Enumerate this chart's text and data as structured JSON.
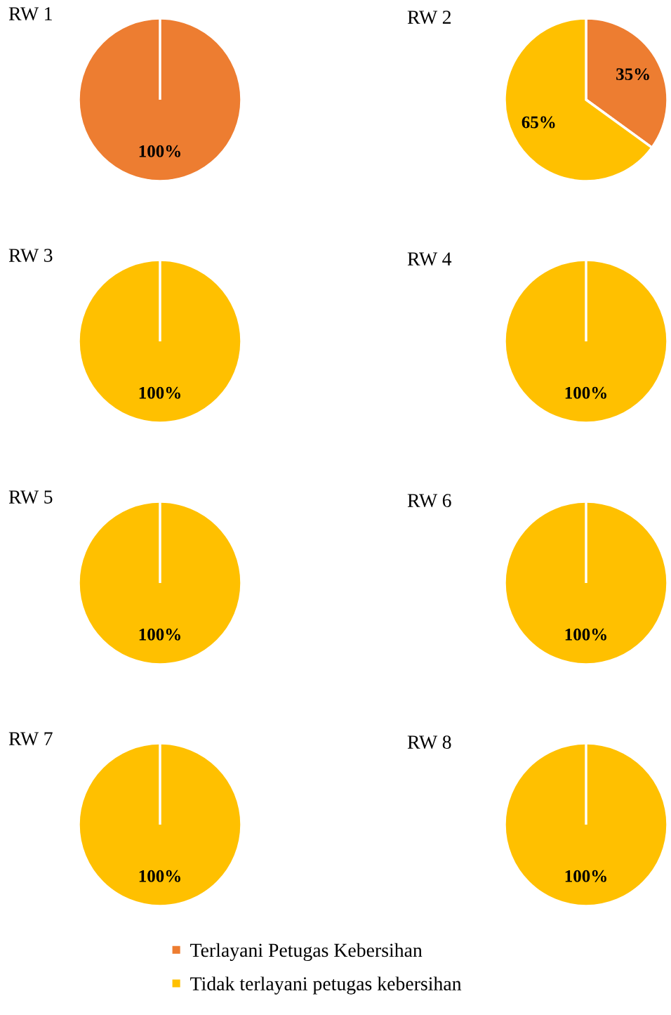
{
  "chart_data": [
    {
      "type": "pie",
      "title": "RW 1",
      "categories": [
        null,
        null
      ],
      "values": [
        100,
        0
      ],
      "colors": [
        "#ed7d31",
        "#ffc000"
      ],
      "value_labels": [
        "100%",
        null
      ]
    },
    {
      "type": "pie",
      "title": "RW 2",
      "categories": [
        null,
        null
      ],
      "values": [
        35,
        65
      ],
      "colors": [
        "#ed7d31",
        "#ffc000"
      ],
      "value_labels": [
        "35%",
        "65%"
      ]
    },
    {
      "type": "pie",
      "title": "RW 3",
      "categories": [
        null,
        null
      ],
      "values": [
        0,
        100
      ],
      "colors": [
        "#ed7d31",
        "#ffc000"
      ],
      "value_labels": [
        null,
        "100%"
      ]
    },
    {
      "type": "pie",
      "title": "RW 4",
      "categories": [
        null,
        null
      ],
      "values": [
        0,
        100
      ],
      "colors": [
        "#ed7d31",
        "#ffc000"
      ],
      "value_labels": [
        null,
        "100%"
      ]
    },
    {
      "type": "pie",
      "title": "RW 5",
      "categories": [
        null,
        null
      ],
      "values": [
        0,
        100
      ],
      "colors": [
        "#ed7d31",
        "#ffc000"
      ],
      "value_labels": [
        null,
        "100%"
      ]
    },
    {
      "type": "pie",
      "title": "RW 6",
      "categories": [
        null,
        null
      ],
      "values": [
        0,
        100
      ],
      "colors": [
        "#ed7d31",
        "#ffc000"
      ],
      "value_labels": [
        null,
        "100%"
      ]
    },
    {
      "type": "pie",
      "title": "RW 7",
      "categories": [
        null,
        null
      ],
      "values": [
        0,
        100
      ],
      "colors": [
        "#ed7d31",
        "#ffc000"
      ],
      "value_labels": [
        null,
        "100%"
      ]
    },
    {
      "type": "pie",
      "title": "RW 8",
      "categories": [
        "Terlayani Petugas Kebersihan",
        "Tidak terlayani petugas kebersihan"
      ],
      "values": [
        0,
        100
      ],
      "colors": [
        "#ed7d31",
        "#ffc000"
      ],
      "value_labels": [
        null,
        "100%"
      ],
      "legend": "bottom"
    }
  ]
}
